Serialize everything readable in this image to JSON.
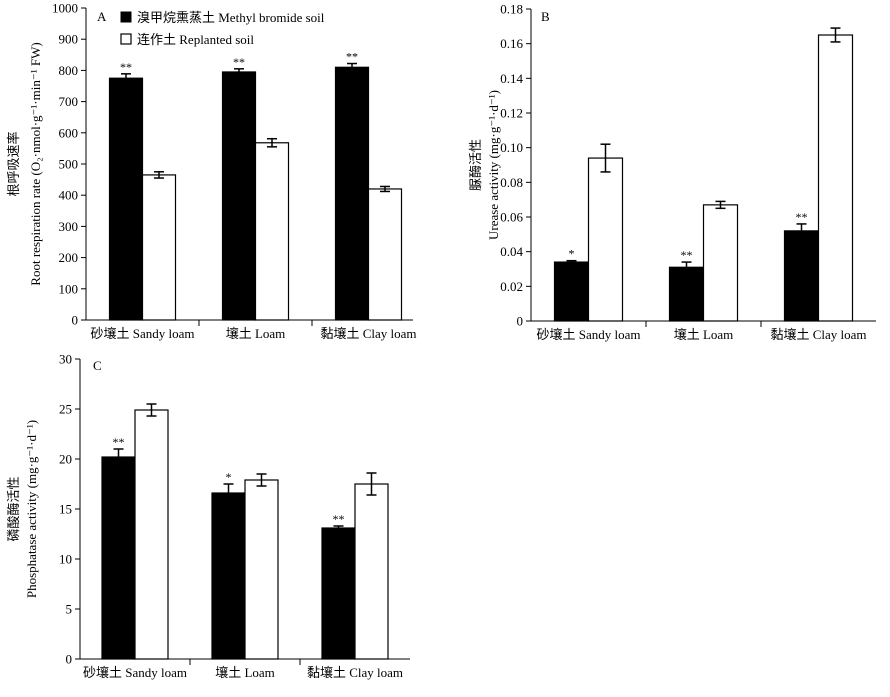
{
  "legend": {
    "methyl_label": "溴甲烷熏蒸土 Methyl bromide soil",
    "replanted_label": "连作土 Replanted soil"
  },
  "chart_data": [
    {
      "panel": "A",
      "type": "bar",
      "ylabel_cn": "根呼吸速率",
      "ylabel_en": "Root respiration rate (O₂·nmol·g⁻¹·min⁻¹ FW)",
      "categories": [
        "砂壤土 Sandy loam",
        "壤土 Loam",
        "黏壤土 Clay loam"
      ],
      "ylim": [
        0,
        1000
      ],
      "yticks": [
        "0",
        "100",
        "200",
        "300",
        "400",
        "500",
        "600",
        "700",
        "800",
        "900",
        "1000"
      ],
      "legend_position": "top-left",
      "series": [
        {
          "key": "methyl",
          "color": "#000000",
          "values": [
            775,
            795,
            810
          ],
          "errors": [
            14,
            10,
            12
          ]
        },
        {
          "key": "replanted",
          "color": "#ffffff",
          "values": [
            465,
            568,
            420
          ],
          "errors": [
            10,
            13,
            8
          ]
        }
      ],
      "annotations": [
        "**",
        "**",
        "**"
      ]
    },
    {
      "panel": "B",
      "type": "bar",
      "ylabel_cn": "脲酶活性",
      "ylabel_en": "Urease activity (mg·g⁻¹·d⁻¹)",
      "categories": [
        "砂壤土 Sandy loam",
        "壤土 Loam",
        "黏壤土 Clay loam"
      ],
      "ylim": [
        0,
        0.18
      ],
      "yticks": [
        "0",
        "0.02",
        "0.04",
        "0.06",
        "0.08",
        "0.10",
        "0.12",
        "0.14",
        "0.16",
        "0.18"
      ],
      "series": [
        {
          "key": "methyl",
          "color": "#000000",
          "values": [
            0.034,
            0.031,
            0.052
          ],
          "errors": [
            0.0008,
            0.003,
            0.004
          ]
        },
        {
          "key": "replanted",
          "color": "#ffffff",
          "values": [
            0.094,
            0.067,
            0.165
          ],
          "errors": [
            0.008,
            0.002,
            0.004
          ]
        }
      ],
      "annotations": [
        "*",
        "**",
        "**"
      ]
    },
    {
      "panel": "C",
      "type": "bar",
      "ylabel_cn": "磷酸酶活性",
      "ylabel_en": "Phosphatase activity (mg·g⁻¹·d⁻¹)",
      "categories": [
        "砂壤土 Sandy loam",
        "壤土 Loam",
        "黏壤土 Clay loam"
      ],
      "ylim": [
        0,
        30
      ],
      "yticks": [
        "0",
        "5",
        "10",
        "15",
        "20",
        "25",
        "30"
      ],
      "series": [
        {
          "key": "methyl",
          "color": "#000000",
          "values": [
            20.2,
            16.6,
            13.1
          ],
          "errors": [
            0.8,
            0.9,
            0.2
          ]
        },
        {
          "key": "replanted",
          "color": "#ffffff",
          "values": [
            24.9,
            17.9,
            17.5
          ],
          "errors": [
            0.6,
            0.6,
            1.1
          ]
        }
      ],
      "annotations": [
        "**",
        "*",
        "**"
      ]
    }
  ]
}
